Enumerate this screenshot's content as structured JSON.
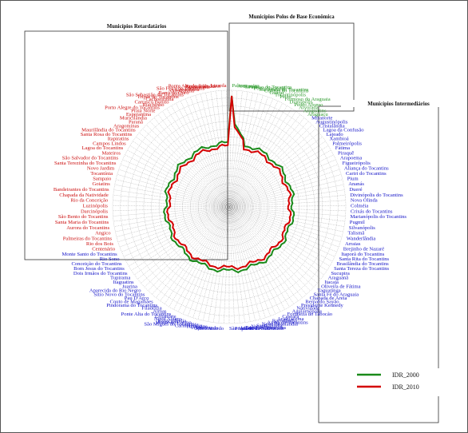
{
  "chart_data": {
    "type": "radar",
    "legend_position": "bottom-right",
    "grid": true,
    "series": [
      {
        "name": "IDR_2000",
        "color": "#1a8a1a"
      },
      {
        "name": "IDR_2010",
        "color": "#d40000"
      }
    ],
    "groups": [
      {
        "title": "Municípios Polos de Base Econômica",
        "color": "#2e9b2e",
        "municipalities": [
          "Palmas",
          "Araguaína",
          "Gurupi",
          "Paraíso do Tocantins",
          "Porto Nacional",
          "Miracema do Tocantins",
          "Colinas do Tocantins",
          "Guaraí",
          "Tocantinópolis",
          "Peixe",
          "Formoso do Araguaia",
          "Dianópolis",
          "Pedro Afonso",
          "Alvorada",
          "Araguatins",
          "Araguaçu"
        ]
      },
      {
        "title": "Municípios Intermediários",
        "color": "#1414c8",
        "municipalities": [
          "Miranorte",
          "Augustinópolis",
          "Cristalândia",
          "Lagoa da Confusão",
          "Lajeado",
          "Xambioá",
          "Palmeirópolis",
          "Fátima",
          "Piraquê",
          "Arapoema",
          "Figueirópolis",
          "Aliança do Tocantins",
          "Cariri do Tocantins",
          "Pium",
          "Ananás",
          "Dueré",
          "Divinópolis do Tocantins",
          "Nova Olinda",
          "Colméia",
          "Crixás do Tocantins",
          "Marianópolis do Tocantins",
          "Pugmil",
          "Silvanópolis",
          "Talismã",
          "Wanderlândia",
          "Arraias",
          "Brejinho de Nazaré",
          "Itaporã do Tocantins",
          "Santa Rita do Tocantins",
          "Brasilândia do Tocantins",
          "Santa Tereza do Tocantins",
          "Sucupira",
          "Araguanã",
          "Itacajá",
          "Oliveira de Fátima",
          "Taguatinga",
          "Santa Fé do Araguaia",
          "Chapada de Areia",
          "Bernardo Sayão",
          "Presidente Kennedy",
          "Natividade",
          "Aguiarnópolis",
          "Fortaleza do Tabocão",
          "Caseara",
          "Araguacema",
          "Barrolândia",
          "Axixá do Tocantins",
          "Nova Rosalândia",
          "Sandolândia",
          "Nazaré",
          "Buriti do Tocantins",
          "Jaú do Tocantins",
          "Pequizeiro",
          "São Valério da Natividade",
          "Novo Acordo",
          "Combinado",
          "Ipueiras",
          "Tupiratins",
          "Carmolândia",
          "São Miguel do Tocantins",
          "Monte do Carmo",
          "Babaçulândia",
          "Novo Alegre",
          "Goianorte",
          "Ponte Alta do Tocantins",
          "Almas",
          "Filadélfia",
          "Pindorama do Tocantins",
          "Couto de Magalhães",
          "Pau D'Arco",
          "Sítio Novo do Tocantins",
          "Aparecida do Rio Negro",
          "Juarina",
          "Itaguatins",
          "Tupirama",
          "Dois Irmãos do Tocantins",
          "Bom Jesus do Tocantins",
          "Conceição do Tocantins",
          "Rio Sono",
          "Monte Santo do Tocantins"
        ]
      },
      {
        "title": "Municípios Retardatários",
        "color": "#cc1111",
        "municipalities": [
          "Centenário",
          "Rio dos Bois",
          "Palmeiras do Tocantins",
          "Angico",
          "Aurora do Tocantins",
          "Santa Maria do Tocantins",
          "São Bento do Tocantins",
          "Darcinópolis",
          "Luzinópolis",
          "Rio da Conceição",
          "Chapada da Natividade",
          "Bandeirantes do Tocantins",
          "Goiatins",
          "Sampaio",
          "Tocantínia",
          "Novo Jardim",
          "Santa Terezinha do Tocantins",
          "São Salvador do Tocantins",
          "Mateiros",
          "Lagoa do Tocantins",
          "Campos Lindos",
          "Itapiratins",
          "Santa Rosa do Tocantins",
          "Maurilândia do Tocantins",
          "Aragominas",
          "Paranã",
          "Muricilândia",
          "Esperantina",
          "Praia Norte",
          "Porto Alegre do Tocantins",
          "Riachinho",
          "Carrasco Bonito",
          "Cachoeirinha",
          "Tripas do Tocantins",
          "São Sebastião do Tocantins",
          "Barra do Ouro",
          "Abreulândia",
          "Lavandeira",
          "São Félix do Tocantins",
          "Palmeirante",
          "Recursolândia",
          "Ponte Alta do Bom Jesus",
          "Lizarda"
        ]
      }
    ]
  }
}
